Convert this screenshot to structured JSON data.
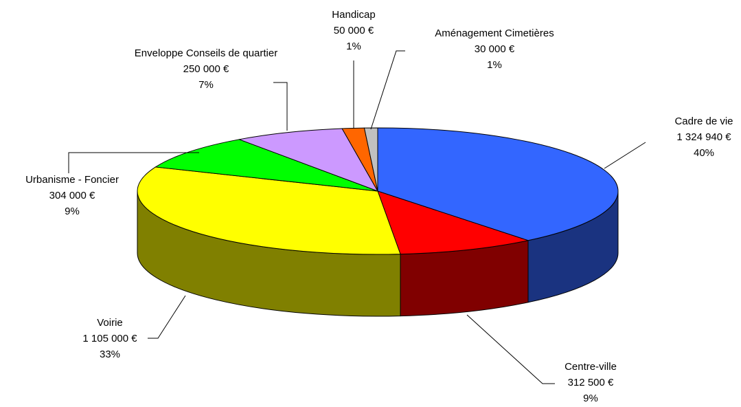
{
  "chart_data": {
    "type": "pie",
    "categories": [
      "Cadre de vie",
      "Centre-ville",
      "Voirie",
      "Urbanisme - Foncier",
      "Enveloppe Conseils de quartier",
      "Handicap",
      "Aménagement Cimetières"
    ],
    "values": [
      1324940,
      312500,
      1105000,
      304000,
      250000,
      50000,
      30000
    ],
    "value_labels": [
      "1 324 940 €",
      "312 500 €",
      "1 105 000 €",
      "304 000 €",
      "250 000 €",
      "50 000 €",
      "30 000 €"
    ],
    "percents": [
      40,
      9,
      33,
      9,
      7,
      1,
      1
    ],
    "percent_labels": [
      "40%",
      "9%",
      "33%",
      "9%",
      "7%",
      "1%",
      "1%"
    ],
    "colors": [
      "#3366ff",
      "#ff0000",
      "#ffff00",
      "#00ff00",
      "#cc99ff",
      "#ff6600",
      "#c0c0c0"
    ]
  }
}
